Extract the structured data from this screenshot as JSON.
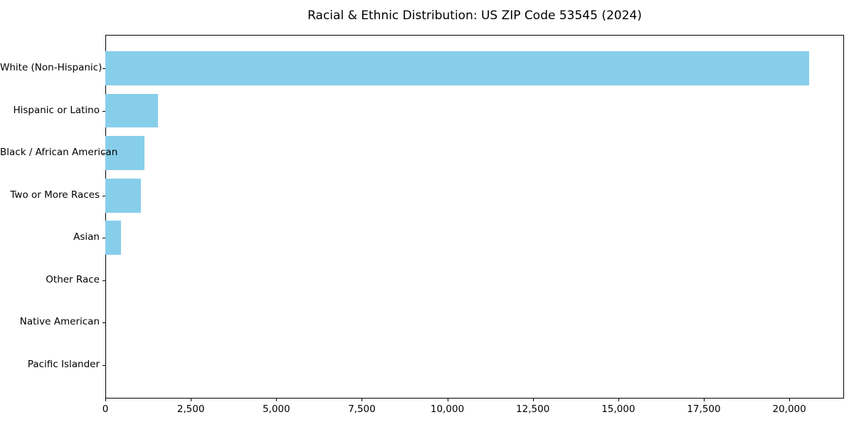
{
  "chart_data": {
    "type": "bar",
    "orientation": "horizontal",
    "title": "Racial & Ethnic Distribution: US ZIP Code 53545 (2024)",
    "categories": [
      "White (Non-Hispanic)",
      "Hispanic or Latino",
      "Black / African American",
      "Two or More Races",
      "Asian",
      "Other Race",
      "Native American",
      "Pacific Islander"
    ],
    "values": [
      20570,
      1535,
      1140,
      1040,
      450,
      0,
      0,
      0
    ],
    "xlabel": "",
    "ylabel": "",
    "xlim": [
      0,
      21600
    ],
    "xticks": [
      0,
      2500,
      5000,
      7500,
      10000,
      12500,
      15000,
      17500,
      20000
    ],
    "xtick_format": "thousands-comma",
    "bar_color": "#87CEEB",
    "background_color": "#ffffff",
    "spine_color": "#000000",
    "grid": false,
    "legend": null,
    "bar_height_fraction": 0.8
  }
}
